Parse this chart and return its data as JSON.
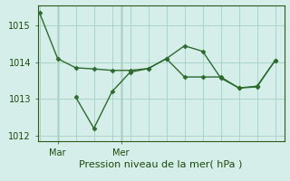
{
  "line1_x": [
    0,
    1,
    2,
    3,
    4,
    5,
    6,
    7,
    8,
    9,
    10,
    11,
    12,
    13
  ],
  "line1_y": [
    1015.35,
    1014.1,
    1013.85,
    1013.82,
    1013.78,
    1013.78,
    1013.83,
    1014.1,
    1014.45,
    1014.3,
    1013.57,
    1013.3,
    1013.33,
    1014.05
  ],
  "line2_x": [
    2,
    3,
    4,
    5,
    6,
    7,
    8,
    9,
    10,
    11,
    12,
    13
  ],
  "line2_y": [
    1013.05,
    1012.2,
    1013.2,
    1013.73,
    1013.83,
    1014.1,
    1013.6,
    1013.6,
    1013.6,
    1013.3,
    1013.35,
    1014.05
  ],
  "line_color": "#2d6a2d",
  "marker_color": "#2d6a2d",
  "background_color": "#d6eeea",
  "grid_color": "#aad4cc",
  "axis_color": "#2d5a1a",
  "text_color": "#1a4a0a",
  "ylim": [
    1011.85,
    1015.55
  ],
  "yticks": [
    1012,
    1013,
    1014,
    1015
  ],
  "xlabel": "Pression niveau de la mer( hPa )",
  "mar_x": 1,
  "mer_x": 4.5,
  "xlim": [
    -0.1,
    13.5
  ],
  "label_fontsize": 8,
  "tick_fontsize": 7
}
